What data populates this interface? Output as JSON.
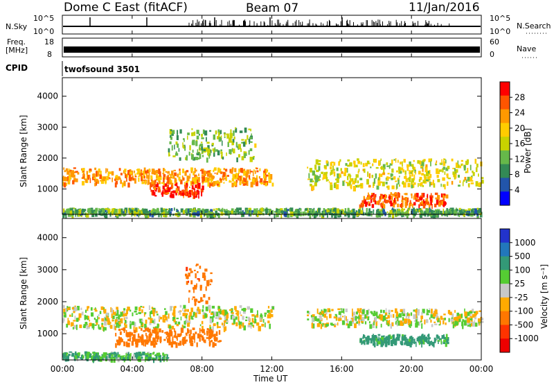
{
  "header": {
    "title": "Dome C East (fitACF)",
    "beam": "Beam 07",
    "date": "11/Jan/2016"
  },
  "top_panels": {
    "nsky_label": "N.Sky",
    "nsky_ticks": [
      "10^5",
      "10^0"
    ],
    "nsearch_label": "N.Search",
    "nsearch_ticks": [
      "10^5",
      "10^0"
    ],
    "freq_label_line1": "Freq.",
    "freq_label_line2": "[MHz]",
    "freq_ticks": [
      "18",
      "8"
    ],
    "nave_label": "Nave",
    "nave_ticks": [
      "60",
      "0"
    ],
    "cpid_label": "CPID",
    "cpid_value": "twofsound 3501"
  },
  "colorbars": {
    "power": {
      "label": "Power [dB]",
      "ticks": [
        "28",
        "24",
        "20",
        "16",
        "12",
        "8",
        "4"
      ],
      "colors": [
        "#ff0000",
        "#ff5500",
        "#ff9900",
        "#ffcc00",
        "#c8d200",
        "#66b84a",
        "#338a55",
        "#2255aa",
        "#0000ff"
      ]
    },
    "velocity": {
      "label": "Velocity [m s⁻¹]",
      "ticks": [
        "1000",
        "500",
        "100",
        "25",
        "-25",
        "-100",
        "-500",
        "-1000"
      ],
      "colors": [
        "#2233cc",
        "#2277bb",
        "#339977",
        "#55cc33",
        "#c8c8c8",
        "#ffaa00",
        "#ff7700",
        "#ff3300",
        "#ee0000"
      ]
    }
  },
  "axes": {
    "ylabel": "Slant Range [km]",
    "xlabel": "Time UT",
    "y_ticks": [
      "1000",
      "2000",
      "3000",
      "4000"
    ],
    "x_ticks": [
      "00:00",
      "04:00",
      "08:00",
      "12:00",
      "16:00",
      "20:00",
      "00:00"
    ]
  },
  "chart_data": [
    {
      "type": "heatmap",
      "panel": "power",
      "xlabel": "Time UT",
      "ylabel": "Slant Range [km]",
      "colorbar_label": "Power [dB]",
      "x_range_hours": [
        0,
        24
      ],
      "y_range_km": [
        180,
        4600
      ],
      "color_range_db": [
        0,
        30
      ],
      "echo_bands": [
        {
          "t_start_h": 0.0,
          "t_end_h": 12.0,
          "range_km": [
            1200,
            1700
          ],
          "power_db": 22
        },
        {
          "t_start_h": 5.0,
          "t_end_h": 8.0,
          "range_km": [
            800,
            1200
          ],
          "power_db": 28
        },
        {
          "t_start_h": 6.0,
          "t_end_h": 11.0,
          "range_km": [
            2000,
            3000
          ],
          "power_db": 12
        },
        {
          "t_start_h": 14.0,
          "t_end_h": 24.0,
          "range_km": [
            1100,
            2000
          ],
          "power_db": 16
        },
        {
          "t_start_h": 17.0,
          "t_end_h": 22.0,
          "range_km": [
            500,
            900
          ],
          "power_db": 26
        },
        {
          "t_start_h": 0.0,
          "t_end_h": 24.0,
          "range_km": [
            200,
            400
          ],
          "power_db": 10
        }
      ]
    },
    {
      "type": "heatmap",
      "panel": "velocity",
      "xlabel": "Time UT",
      "ylabel": "Slant Range [km]",
      "colorbar_label": "Velocity [m s⁻¹]",
      "x_range_hours": [
        0,
        24
      ],
      "y_range_km": [
        180,
        4600
      ],
      "color_range_ms": [
        -1000,
        1000
      ],
      "echo_bands": [
        {
          "t_start_h": 0.0,
          "t_end_h": 12.0,
          "range_km": [
            1200,
            1900
          ],
          "velocity_ms": 0
        },
        {
          "t_start_h": 3.0,
          "t_end_h": 9.0,
          "range_km": [
            700,
            1200
          ],
          "velocity_ms": -200
        },
        {
          "t_start_h": 7.0,
          "t_end_h": 8.5,
          "range_km": [
            2000,
            3200
          ],
          "velocity_ms": -250
        },
        {
          "t_start_h": 14.0,
          "t_end_h": 24.0,
          "range_km": [
            1300,
            1800
          ],
          "velocity_ms": 0
        },
        {
          "t_start_h": 17.0,
          "t_end_h": 22.0,
          "range_km": [
            700,
            1000
          ],
          "velocity_ms": 100
        },
        {
          "t_start_h": 0.0,
          "t_end_h": 6.0,
          "range_km": [
            250,
            450
          ],
          "velocity_ms": 60
        }
      ]
    }
  ]
}
